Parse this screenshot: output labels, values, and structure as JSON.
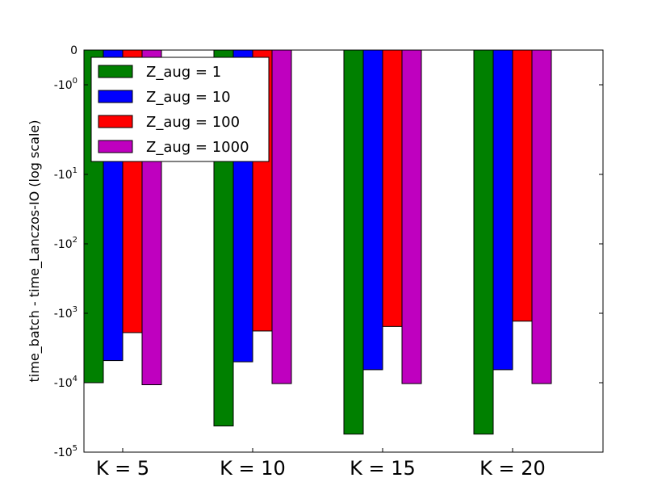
{
  "chart_data": {
    "type": "bar",
    "ylabel": "time_batch - time_Lanczos-IO (log scale)",
    "xlabel": "",
    "title": "",
    "y_scale": "symlog",
    "y_scale_linthresh": 1,
    "ylim": [
      -100000,
      0
    ],
    "y_ticks": [
      {
        "value": 0,
        "label": "0"
      },
      {
        "value": -1,
        "label": "-10",
        "exp": "0"
      },
      {
        "value": -10,
        "label": "-10",
        "exp": "1"
      },
      {
        "value": -100,
        "label": "-10",
        "exp": "2"
      },
      {
        "value": -1000,
        "label": "-10",
        "exp": "3"
      },
      {
        "value": -10000,
        "label": "-10",
        "exp": "4"
      },
      {
        "value": -100000,
        "label": "-10",
        "exp": "5"
      }
    ],
    "categories": [
      "K = 5",
      "K = 10",
      "K = 15",
      "K = 20"
    ],
    "series": [
      {
        "name": "Z_aug = 1",
        "color": "#008000",
        "values": [
          -10000,
          -42000,
          -55000,
          -55000
        ]
      },
      {
        "name": "Z_aug = 10",
        "color": "#0000ff",
        "values": [
          -4800,
          -5000,
          -6500,
          -6500
        ]
      },
      {
        "name": "Z_aug = 100",
        "color": "#ff0000",
        "values": [
          -1900,
          -1800,
          -1550,
          -1300
        ]
      },
      {
        "name": "Z_aug = 1000",
        "color": "#bf00bf",
        "values": [
          -10700,
          -10300,
          -10300,
          -10300
        ]
      }
    ],
    "legend_position": "top-left",
    "grid": false
  }
}
